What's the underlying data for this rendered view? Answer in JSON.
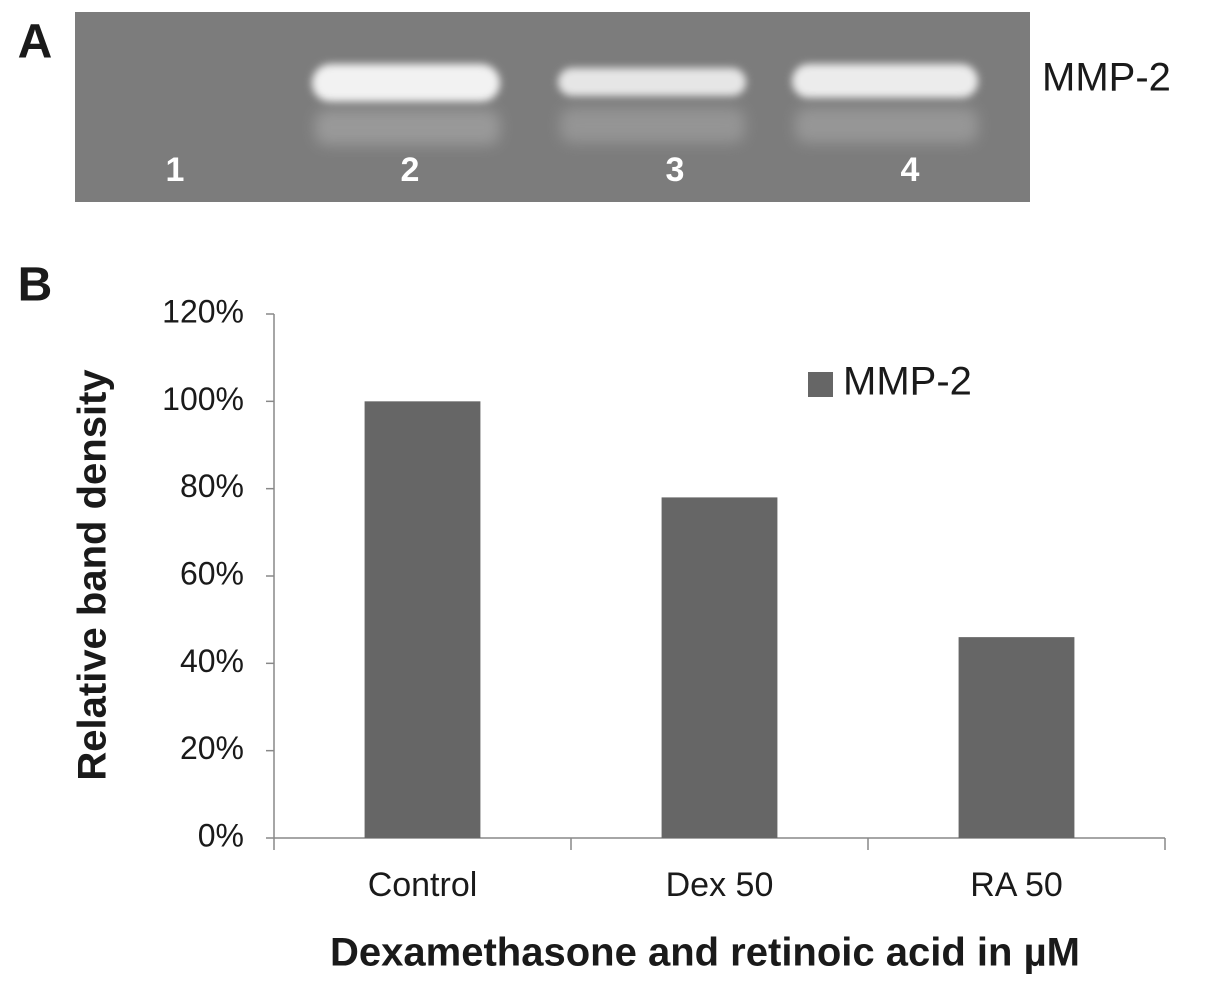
{
  "panel_a": {
    "letter": "A",
    "lanes": [
      "1",
      "2",
      "3",
      "4"
    ],
    "band_label": "MMP-2"
  },
  "chart_data": {
    "type": "bar",
    "panel_letter": "B",
    "x_label": "Dexamethasone and retinoic acid in µM",
    "y_label": "Relative band density",
    "categories": [
      "Control",
      "Dex 50",
      "RA 50"
    ],
    "series": [
      {
        "name": "MMP-2",
        "color": "#666666",
        "values": [
          100,
          78,
          46
        ]
      }
    ],
    "ylim": [
      0,
      120
    ],
    "yticks": [
      {
        "value": 0,
        "label": "0%"
      },
      {
        "value": 20,
        "label": "20%"
      },
      {
        "value": 40,
        "label": "40%"
      },
      {
        "value": 60,
        "label": "60%"
      },
      {
        "value": 80,
        "label": "80%"
      },
      {
        "value": 100,
        "label": "100%"
      },
      {
        "value": 120,
        "label": "120%"
      }
    ],
    "legend": "top-right"
  }
}
